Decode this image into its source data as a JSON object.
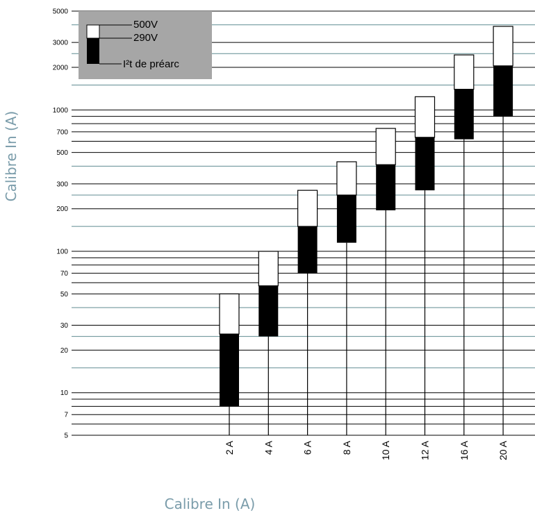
{
  "chart_data": {
    "type": "bar",
    "chart_subtype": "floating-range",
    "y_scale": "log",
    "ylim": [
      5,
      5000
    ],
    "y_ticks": [
      5,
      7,
      10,
      20,
      30,
      50,
      70,
      100,
      200,
      300,
      500,
      700,
      1000,
      2000,
      3000,
      5000
    ],
    "y_tick_labels": [
      "5",
      "7",
      "10",
      "20",
      "30",
      "50",
      "70",
      "100",
      "200",
      "300",
      "500",
      "700",
      "1000",
      "2000",
      "3000",
      "5000"
    ],
    "xlabel": "Calibre In (A)",
    "ylabel": "Calibre In (A)",
    "categories": [
      "2 A",
      "4 A",
      "6 A",
      "8 A",
      "10 A",
      "12 A",
      "16 A",
      "20 A"
    ],
    "series": [
      {
        "name": "I²t de préarc",
        "values": [
          8,
          25,
          70,
          115,
          195,
          270,
          620,
          900
        ]
      },
      {
        "name": "290V",
        "values": [
          26,
          57,
          150,
          250,
          410,
          640,
          1400,
          2050
        ]
      },
      {
        "name": "500V",
        "values": [
          50,
          100,
          270,
          430,
          740,
          1240,
          2450,
          3900
        ]
      }
    ],
    "legend": {
      "position": "top-left",
      "entries": [
        "500V",
        "290V",
        "I²t de préarc"
      ]
    },
    "colors": {
      "box_290v": "#000000",
      "box_500v": "#ffffff",
      "legend_bg": "#a6a6a6",
      "teal_grid": "#5f8b91",
      "axis_title": "#7a9caa"
    },
    "grid": true
  }
}
